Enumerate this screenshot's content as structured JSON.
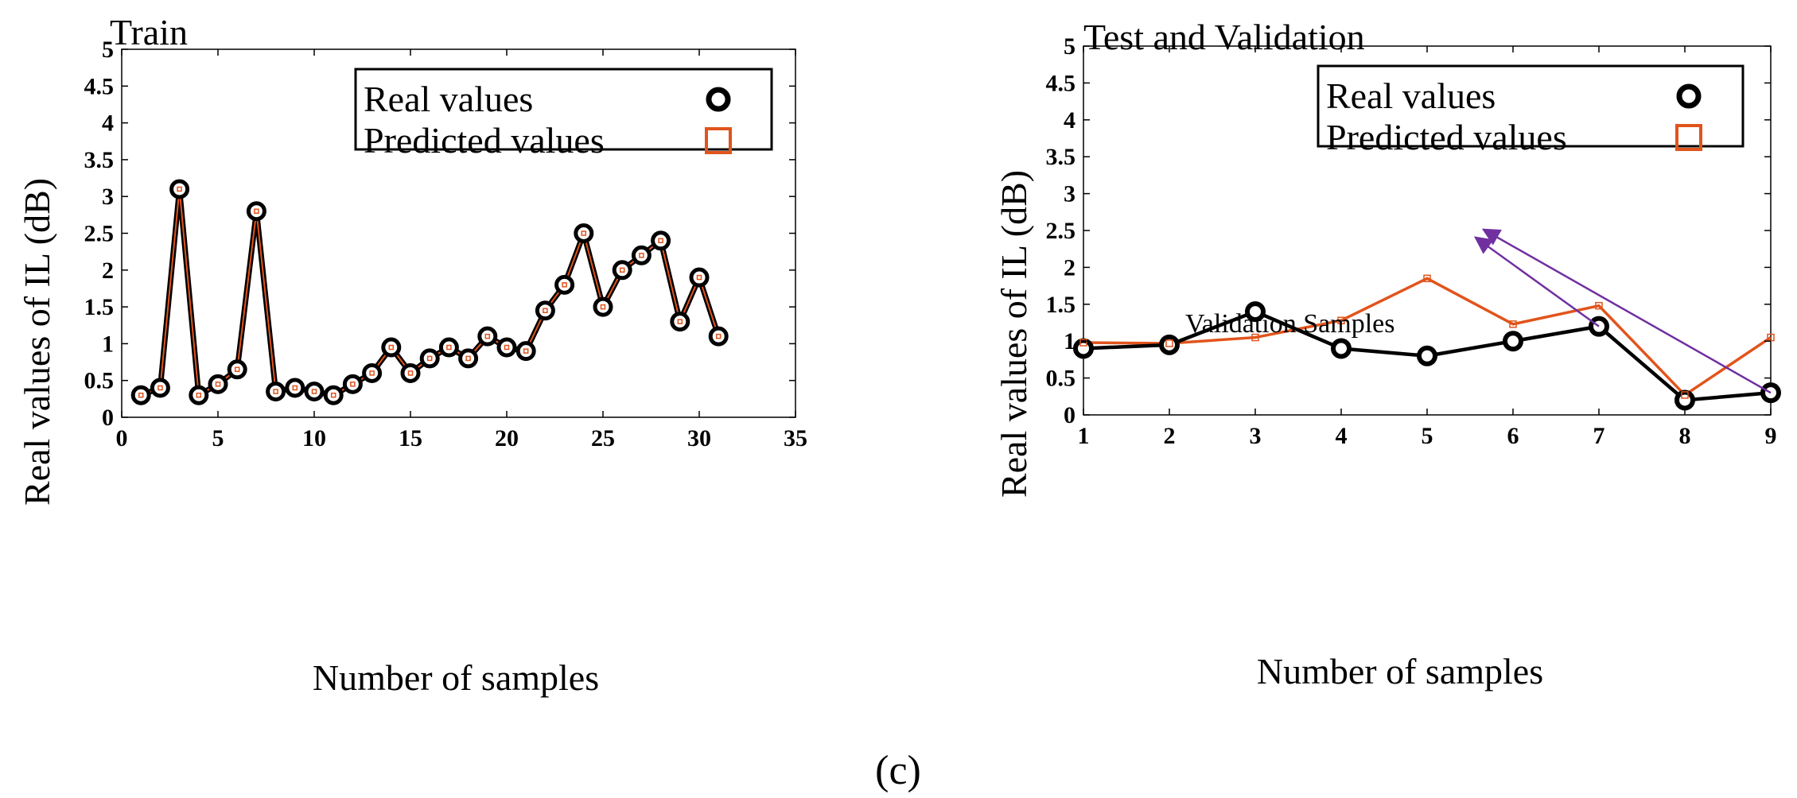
{
  "chart_data": [
    {
      "type": "line",
      "title": "Train",
      "xlabel": "Number of samples",
      "ylabel": "Real values of  IL (dB)",
      "xlim": [
        0,
        35
      ],
      "ylim": [
        0,
        5
      ],
      "xticks": [
        0,
        5,
        10,
        15,
        20,
        25,
        30,
        35
      ],
      "yticks": [
        0,
        0.5,
        1,
        1.5,
        2,
        2.5,
        3,
        3.5,
        4,
        4.5,
        5
      ],
      "xtick_labels": [
        "0",
        "5",
        "10",
        "15",
        "20",
        "25",
        "30",
        "35"
      ],
      "ytick_labels": [
        "0",
        "0.5",
        "1",
        "1.5",
        "2",
        "2.5",
        "3",
        "3.5",
        "4",
        "4.5",
        "5"
      ],
      "legend_position": "top-right",
      "x": [
        1,
        2,
        3,
        4,
        5,
        6,
        7,
        8,
        9,
        10,
        11,
        12,
        13,
        14,
        15,
        16,
        17,
        18,
        19,
        20,
        21,
        22,
        23,
        24,
        25,
        26,
        27,
        28,
        29,
        30,
        31
      ],
      "series": [
        {
          "name": "Real values",
          "marker": "circle",
          "color": "#000000",
          "values": [
            0.3,
            0.4,
            3.1,
            0.3,
            0.45,
            0.65,
            2.8,
            0.35,
            0.4,
            0.35,
            0.3,
            0.45,
            0.6,
            0.95,
            0.6,
            0.8,
            0.95,
            0.8,
            1.1,
            0.95,
            0.9,
            1.45,
            1.8,
            2.5,
            1.5,
            2.0,
            2.2,
            2.4,
            1.3,
            1.9,
            1.1
          ]
        },
        {
          "name": "Predicted values",
          "marker": "square",
          "color": "#e1541c",
          "values": [
            0.3,
            0.4,
            3.1,
            0.3,
            0.45,
            0.65,
            2.8,
            0.35,
            0.4,
            0.35,
            0.3,
            0.45,
            0.6,
            0.95,
            0.6,
            0.8,
            0.95,
            0.8,
            1.1,
            0.95,
            0.9,
            1.45,
            1.8,
            2.5,
            1.5,
            2.0,
            2.2,
            2.4,
            1.3,
            1.9,
            1.1
          ]
        }
      ]
    },
    {
      "type": "line",
      "title": "Test and Validation",
      "xlabel": "Number of samples",
      "ylabel": "Real values of  IL (dB)",
      "xlim": [
        1,
        9
      ],
      "ylim": [
        0,
        5
      ],
      "xticks": [
        1,
        2,
        3,
        4,
        5,
        6,
        7,
        8,
        9
      ],
      "yticks": [
        0,
        0.5,
        1,
        1.5,
        2,
        2.5,
        3,
        3.5,
        4,
        4.5,
        5
      ],
      "xtick_labels": [
        "1",
        "2",
        "3",
        "4",
        "5",
        "6",
        "7",
        "8",
        "9"
      ],
      "ytick_labels": [
        "0",
        "0.5",
        "1",
        "1.5",
        "2",
        "2.5",
        "3",
        "3.5",
        "4",
        "4.5",
        "5"
      ],
      "legend_position": "top-right",
      "x": [
        1,
        2,
        3,
        4,
        5,
        6,
        7,
        8,
        9
      ],
      "series": [
        {
          "name": "Real values",
          "marker": "circle",
          "color": "#000000",
          "values": [
            0.9,
            0.95,
            1.4,
            0.9,
            0.8,
            1.0,
            1.2,
            0.2,
            0.3
          ]
        },
        {
          "name": "Predicted values",
          "marker": "square",
          "color": "#e1541c",
          "values": [
            0.98,
            0.97,
            1.05,
            1.28,
            1.85,
            1.23,
            1.48,
            0.27,
            1.05
          ]
        }
      ],
      "annotation": {
        "text": "Validation Samples",
        "color": "#7030a0",
        "anchor": [
          5.6,
          2.6
        ],
        "targets": [
          [
            7,
            1.2
          ],
          [
            9,
            0.3
          ]
        ]
      }
    }
  ],
  "caption": "(c)"
}
